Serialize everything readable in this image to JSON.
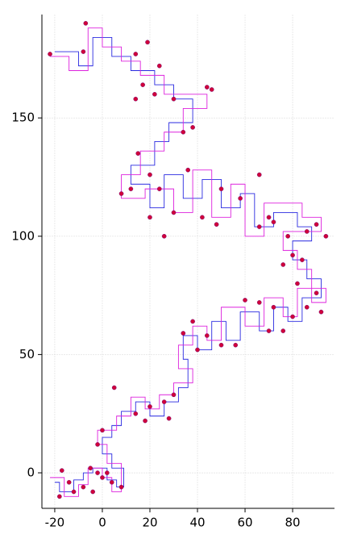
{
  "chart_data": {
    "type": "line",
    "xlim": [
      -25.4,
      97.6
    ],
    "ylim": [
      -15,
      193.7
    ],
    "xticks": [
      -20,
      0,
      20,
      40,
      60,
      80
    ],
    "yticks": [
      0,
      50,
      100,
      150
    ],
    "grid": true,
    "series": [
      {
        "color": "#2a2ae0",
        "x": [
          -20,
          -18,
          -18,
          -12,
          -12,
          -8,
          -8,
          -4,
          -4,
          2,
          2,
          6,
          6,
          9,
          9,
          4,
          4,
          0,
          0,
          4,
          4,
          8,
          8,
          14,
          14,
          20,
          20,
          26,
          26,
          32,
          32,
          36,
          36,
          34,
          34,
          40,
          40,
          46,
          46,
          52,
          52,
          58,
          58,
          66,
          66,
          72,
          72,
          78,
          78,
          84,
          84,
          92,
          92,
          86,
          86,
          80,
          80,
          88,
          88,
          82,
          82,
          72,
          72,
          64,
          64,
          58,
          58,
          50,
          50,
          42,
          42,
          34,
          34,
          26,
          26,
          20,
          20,
          12,
          12,
          22,
          22,
          28,
          28,
          38,
          38,
          30,
          30,
          22,
          22,
          12,
          12,
          4,
          4,
          -4,
          -4,
          -10,
          -10,
          -20
        ],
        "y": [
          -4,
          -4,
          -8,
          -8,
          -3,
          -3,
          0,
          0,
          2,
          2,
          -3,
          -3,
          -6,
          -6,
          2,
          2,
          8,
          8,
          15,
          15,
          20,
          20,
          26,
          26,
          30,
          30,
          24,
          24,
          30,
          30,
          36,
          36,
          48,
          48,
          58,
          58,
          52,
          52,
          64,
          64,
          56,
          56,
          68,
          68,
          60,
          60,
          70,
          70,
          64,
          64,
          74,
          74,
          82,
          82,
          90,
          90,
          98,
          98,
          104,
          104,
          110,
          110,
          104,
          104,
          118,
          118,
          112,
          112,
          124,
          124,
          116,
          116,
          126,
          126,
          112,
          112,
          122,
          122,
          130,
          130,
          140,
          140,
          148,
          148,
          158,
          158,
          164,
          164,
          170,
          170,
          176,
          176,
          184,
          184,
          172,
          172,
          178,
          178
        ]
      },
      {
        "color": "#dd22dd",
        "x": [
          -22,
          -16,
          -16,
          -10,
          -10,
          -6,
          -6,
          0,
          0,
          4,
          4,
          8,
          8,
          2,
          2,
          -2,
          -2,
          6,
          6,
          12,
          12,
          18,
          18,
          24,
          24,
          30,
          30,
          38,
          38,
          32,
          32,
          38,
          38,
          44,
          44,
          50,
          50,
          60,
          60,
          68,
          68,
          76,
          76,
          82,
          82,
          94,
          94,
          88,
          88,
          82,
          82,
          76,
          76,
          92,
          92,
          84,
          84,
          68,
          68,
          60,
          60,
          54,
          54,
          46,
          46,
          38,
          38,
          30,
          30,
          18,
          18,
          8,
          8,
          16,
          16,
          26,
          26,
          34,
          34,
          44,
          44,
          26,
          26,
          16,
          16,
          8,
          8,
          0,
          0,
          -6,
          -6,
          -14,
          -14,
          -22
        ],
        "y": [
          -2,
          -2,
          -10,
          -10,
          -5,
          -5,
          2,
          2,
          -2,
          -2,
          -8,
          -8,
          4,
          4,
          12,
          12,
          18,
          18,
          24,
          24,
          32,
          32,
          27,
          27,
          33,
          33,
          38,
          38,
          44,
          44,
          54,
          54,
          62,
          62,
          56,
          56,
          70,
          70,
          62,
          62,
          74,
          74,
          66,
          66,
          78,
          78,
          72,
          72,
          86,
          86,
          94,
          94,
          102,
          102,
          108,
          108,
          114,
          114,
          100,
          100,
          122,
          122,
          108,
          108,
          128,
          128,
          110,
          110,
          120,
          120,
          116,
          116,
          126,
          126,
          136,
          136,
          144,
          144,
          154,
          154,
          160,
          160,
          168,
          168,
          174,
          174,
          180,
          180,
          188,
          188,
          170,
          170,
          176,
          176
        ]
      }
    ],
    "points": {
      "color": "#d0003a",
      "x": [
        -22,
        -7,
        -8,
        19,
        14,
        24,
        17,
        14,
        22,
        30,
        44,
        46,
        38,
        34,
        15,
        20,
        12,
        8,
        24,
        36,
        50,
        58,
        66,
        30,
        42,
        26,
        20,
        48,
        66,
        70,
        72,
        78,
        86,
        90,
        94,
        80,
        84,
        76,
        82,
        90,
        86,
        92,
        80,
        72,
        66,
        60,
        76,
        70,
        56,
        50,
        44,
        34,
        38,
        40,
        30,
        26,
        20,
        14,
        5,
        18,
        28,
        0,
        -2,
        -5,
        -2,
        0,
        4,
        8,
        -8,
        -12,
        -14,
        -17,
        -18,
        -4,
        2
      ],
      "y": [
        177,
        190,
        178,
        182,
        177,
        172,
        164,
        158,
        160,
        158,
        163,
        162,
        146,
        144,
        135,
        126,
        120,
        118,
        120,
        128,
        120,
        116,
        126,
        110,
        108,
        100,
        108,
        105,
        104,
        108,
        106,
        100,
        102,
        105,
        100,
        92,
        90,
        88,
        80,
        76,
        70,
        68,
        66,
        70,
        72,
        73,
        60,
        60,
        54,
        54,
        58,
        59,
        64,
        52,
        33,
        30,
        28,
        25,
        36,
        22,
        23,
        18,
        12,
        2,
        0,
        -2,
        -4,
        -6,
        -6,
        -8,
        -4,
        1,
        -10,
        -8,
        0
      ]
    }
  }
}
